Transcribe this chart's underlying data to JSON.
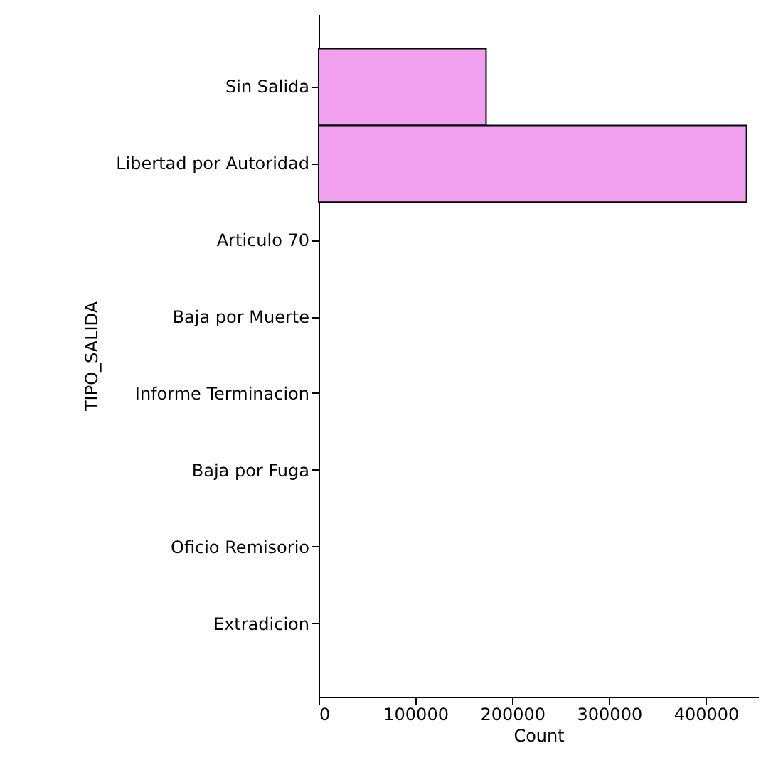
{
  "chart_data": {
    "type": "bar",
    "orientation": "horizontal",
    "xlabel": "Count",
    "ylabel": "TIPO_SALIDA",
    "categories": [
      "Sin Salida",
      "Libertad por Autoridad",
      "Articulo 70",
      "Baja por Muerte",
      "Informe Terminacion",
      "Baja por Fuga",
      "Oficio Remisorio",
      "Extradicion"
    ],
    "values": [
      173000,
      442000,
      0,
      0,
      0,
      0,
      0,
      0
    ],
    "color": "#f1a0f0",
    "xlim": [
      0,
      454000
    ],
    "xticks": [
      0,
      100000,
      200000,
      300000,
      400000
    ]
  }
}
